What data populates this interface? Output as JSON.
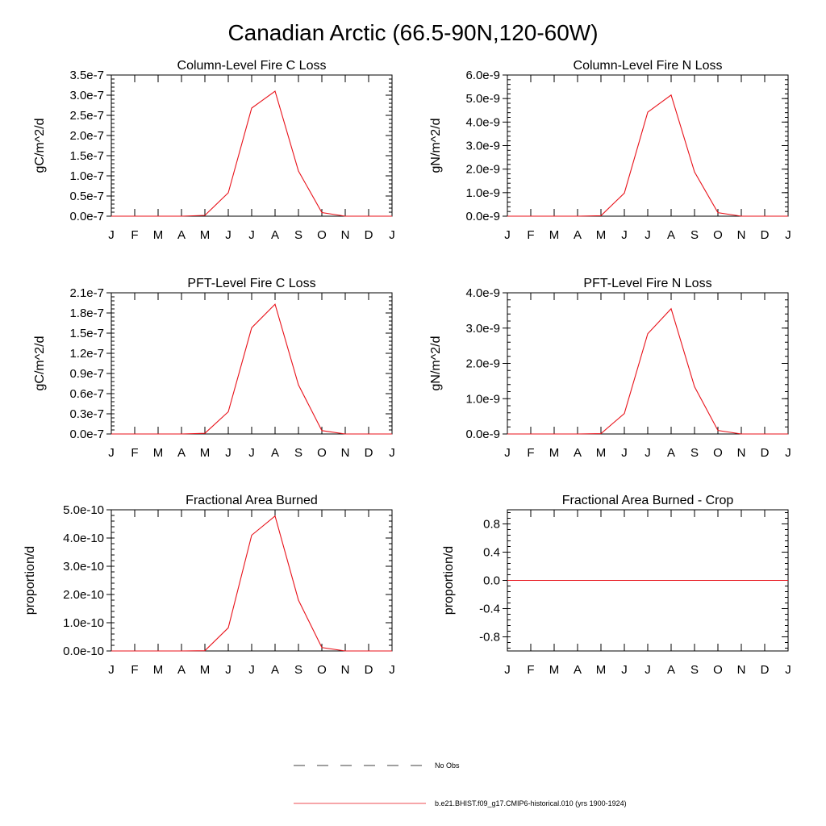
{
  "title": "Canadian Arctic (66.5-90N,120-60W)",
  "months": [
    "J",
    "F",
    "M",
    "A",
    "M",
    "J",
    "J",
    "A",
    "S",
    "O",
    "N",
    "D",
    "J"
  ],
  "line_color": "#e8121a",
  "chart_data": [
    {
      "type": "line",
      "title": "Column-Level Fire C Loss",
      "ylabel": "gC/m^2/d",
      "ylim": [
        0,
        3.5e-07
      ],
      "yticks": [
        0,
        5e-08,
        1e-07,
        1.5e-07,
        2e-07,
        2.5e-07,
        3e-07,
        3.5e-07
      ],
      "ytick_labels": [
        "0.0e-7",
        "0.5e-7",
        "1.0e-7",
        "1.5e-7",
        "2.0e-7",
        "2.5e-7",
        "3.0e-7",
        "3.5e-7"
      ],
      "series": [
        {
          "values": [
            0,
            0,
            0,
            0,
            2e-09,
            5.8e-08,
            2.68e-07,
            3.1e-07,
            1.12e-07,
            9e-09,
            0,
            0,
            0
          ]
        }
      ]
    },
    {
      "type": "line",
      "title": "Column-Level Fire N Loss",
      "ylabel": "gN/m^2/d",
      "ylim": [
        0,
        6e-09
      ],
      "yticks": [
        0,
        1e-09,
        2e-09,
        3e-09,
        4e-09,
        5e-09,
        6e-09
      ],
      "ytick_labels": [
        "0.0e-9",
        "1.0e-9",
        "2.0e-9",
        "3.0e-9",
        "4.0e-9",
        "5.0e-9",
        "6.0e-9"
      ],
      "series": [
        {
          "values": [
            0,
            0,
            0,
            0,
            2e-11,
            9.8e-10,
            4.42e-09,
            5.15e-09,
            1.88e-09,
            1.5e-10,
            0,
            0,
            0
          ]
        }
      ]
    },
    {
      "type": "line",
      "title": "PFT-Level Fire C Loss",
      "ylabel": "gC/m^2/d",
      "ylim": [
        0,
        2.1e-07
      ],
      "yticks": [
        0,
        3e-08,
        6e-08,
        9e-08,
        1.2e-07,
        1.5e-07,
        1.8e-07,
        2.1e-07
      ],
      "ytick_labels": [
        "0.0e-7",
        "0.3e-7",
        "0.6e-7",
        "0.9e-7",
        "1.2e-7",
        "1.5e-7",
        "1.8e-7",
        "2.1e-7"
      ],
      "series": [
        {
          "values": [
            0,
            0,
            0,
            0,
            1e-09,
            3.3e-08,
            1.58e-07,
            1.93e-07,
            7.3e-08,
            5e-09,
            0,
            0,
            0
          ]
        }
      ]
    },
    {
      "type": "line",
      "title": "PFT-Level Fire N Loss",
      "ylabel": "gN/m^2/d",
      "ylim": [
        0,
        4e-09
      ],
      "yticks": [
        0,
        1e-09,
        2e-09,
        3e-09,
        4e-09
      ],
      "ytick_labels": [
        "0.0e-9",
        "1.0e-9",
        "2.0e-9",
        "3.0e-9",
        "4.0e-9"
      ],
      "series": [
        {
          "values": [
            0,
            0,
            0,
            0,
            1e-11,
            5.8e-10,
            2.84e-09,
            3.55e-09,
            1.34e-09,
            1e-10,
            0,
            0,
            0
          ]
        }
      ]
    },
    {
      "type": "line",
      "title": "Fractional Area Burned",
      "ylabel": "proportion/d",
      "ylim": [
        0,
        5e-10
      ],
      "yticks": [
        0,
        1e-10,
        2e-10,
        3e-10,
        4e-10,
        5e-10
      ],
      "ytick_labels": [
        "0.0e-10",
        "1.0e-10",
        "2.0e-10",
        "3.0e-10",
        "4.0e-10",
        "5.0e-10"
      ],
      "series": [
        {
          "values": [
            0,
            0,
            0,
            0,
            1e-12,
            8.2e-11,
            4.1e-10,
            4.78e-10,
            1.8e-10,
            1.2e-11,
            0,
            0,
            0
          ]
        }
      ]
    },
    {
      "type": "line",
      "title": "Fractional Area Burned - Crop",
      "ylabel": "proportion/d",
      "ylim": [
        -1.0,
        1.0
      ],
      "yticks": [
        -0.8,
        -0.4,
        0.0,
        0.4,
        0.8
      ],
      "ytick_labels": [
        "-0.8",
        "-0.4",
        "0.0",
        "0.4",
        "0.8"
      ],
      "series": [
        {
          "values": [
            0,
            0,
            0,
            0,
            0,
            0,
            0,
            0,
            0,
            0,
            0,
            0,
            0
          ]
        }
      ]
    }
  ],
  "legend": [
    {
      "label": "No Obs",
      "style": "dashed",
      "color": "#000000"
    },
    {
      "label": "b.e21.BHIST.f09_g17.CMIP6-historical.010 (yrs 1900-1924)",
      "style": "solid",
      "color": "#e8121a"
    }
  ]
}
